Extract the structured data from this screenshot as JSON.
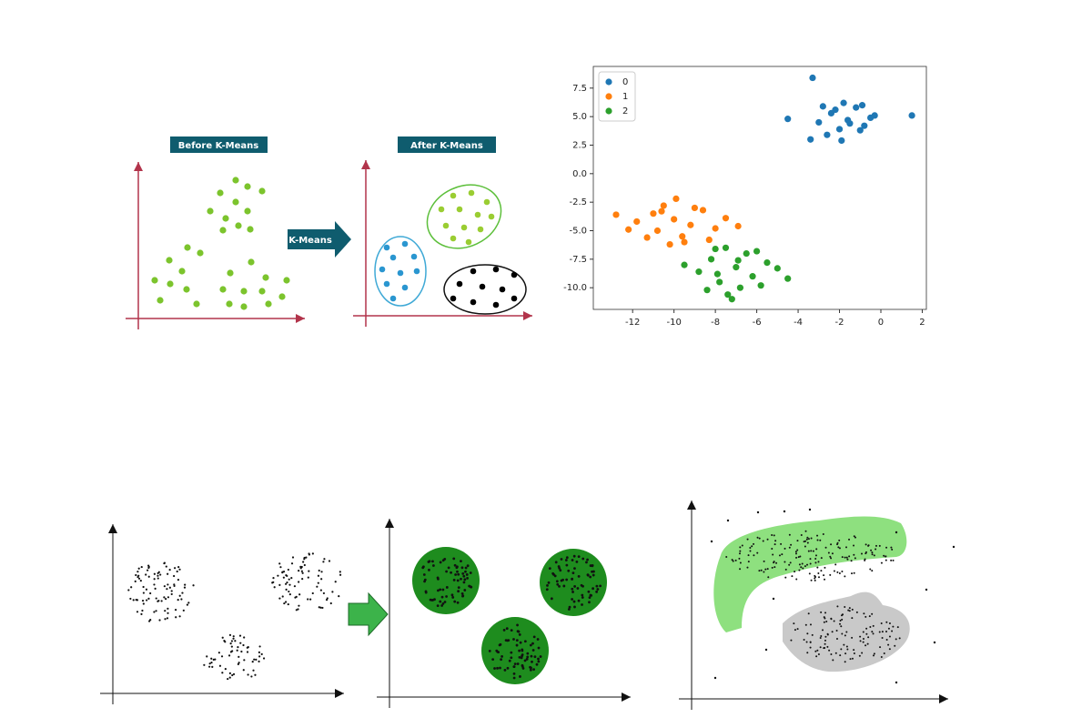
{
  "diagram": {
    "before_label": "Before K-Means",
    "arrow_label": "K-Means",
    "after_label": "After K-Means"
  },
  "chart_data": {
    "type": "scatter",
    "series": [
      {
        "name": "0",
        "color": "#1f77b4",
        "x": [
          -1.6,
          -2.4,
          -0.8,
          -1.2,
          -2.0,
          -3.0,
          -0.3,
          -1.8,
          -2.6,
          -1.0,
          -0.5,
          -3.4,
          -1.5,
          -2.2,
          1.5,
          -4.5,
          -3.3,
          -1.9,
          -0.9,
          -2.8
        ],
        "values": [
          4.7,
          5.3,
          4.2,
          5.8,
          3.9,
          4.5,
          5.1,
          6.2,
          3.4,
          3.8,
          4.9,
          3.0,
          4.4,
          5.6,
          5.1,
          4.8,
          8.4,
          2.9,
          6.0,
          5.9
        ]
      },
      {
        "name": "1",
        "color": "#ff7f0e",
        "x": [
          -10,
          -11,
          -9.2,
          -10.5,
          -11.8,
          -8.6,
          -9.6,
          -10.8,
          -12.8,
          -8.0,
          -9.9,
          -11.3,
          -7.5,
          -10.2,
          -9.0,
          -12.2,
          -8.3,
          -10.6,
          -6.9,
          -9.5
        ],
        "values": [
          -4,
          -3.5,
          -4.5,
          -2.8,
          -4.2,
          -3.2,
          -5.5,
          -5.0,
          -3.6,
          -4.8,
          -2.2,
          -5.6,
          -3.9,
          -6.2,
          -3.0,
          -4.9,
          -5.8,
          -3.3,
          -4.6,
          -6.0
        ]
      },
      {
        "name": "2",
        "color": "#2ca02c",
        "x": [
          -7,
          -8.2,
          -6.2,
          -7.5,
          -5.5,
          -8.8,
          -6.8,
          -7.8,
          -5.0,
          -6.5,
          -8.4,
          -7.2,
          -4.5,
          -6.0,
          -7.9,
          -9.5,
          -5.8,
          -6.9,
          -7.4,
          -8.0
        ],
        "values": [
          -8.2,
          -7.5,
          -9,
          -6.5,
          -7.8,
          -8.6,
          -10,
          -9.5,
          -8.3,
          -7.0,
          -10.2,
          -11.0,
          -9.2,
          -6.8,
          -8.8,
          -8,
          -9.8,
          -7.6,
          -10.6,
          -6.6
        ]
      }
    ],
    "xlim": [
      -13.9,
      2.2
    ],
    "ylim": [
      -11.9,
      9.4
    ],
    "xticks": [
      -12,
      -10,
      -8,
      -6,
      -4,
      -2,
      0,
      2
    ],
    "yticks": [
      7.5,
      {
        "value": 5,
        "label": "5.0"
      },
      2.5,
      {
        "value": 0,
        "label": "0.0"
      },
      -2.5,
      {
        "value": -5,
        "label": "-5.0"
      },
      -7.5,
      {
        "value": -10,
        "label": "-10.0"
      }
    ],
    "legend": "upper left"
  }
}
